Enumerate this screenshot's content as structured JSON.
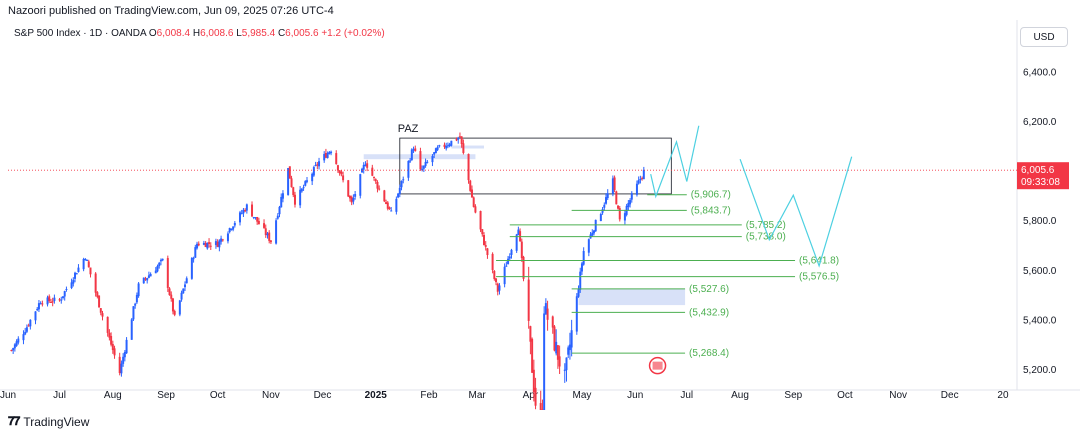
{
  "header": {
    "publisher_line": "Nazoori published on TradingView.com, Jun 09, 2025 07:26 UTC-4",
    "symbol": "S&P 500 Index · 1D · OANDA",
    "ohlc": [
      {
        "label": "O",
        "value": "6,008.4"
      },
      {
        "label": "H",
        "value": "6,008.6"
      },
      {
        "label": "L",
        "value": "5,985.4"
      },
      {
        "label": "C",
        "value": "6,005.6"
      }
    ],
    "change": "+1.2 (+0.02%)"
  },
  "currency_label": "USD",
  "footer": {
    "brand": "TradingView",
    "logo_icon": "tradingview-logo-icon"
  },
  "colors": {
    "up": "#2962ff",
    "down": "#f23645",
    "level": "#4caf50",
    "projection": "#4dd0e1",
    "last_price": "#f23645",
    "zone": "#c8d4f5"
  },
  "chart_data": {
    "type": "candlestick",
    "ylim": [
      5140,
      6490
    ],
    "yticks": [
      5200,
      5400,
      5600,
      5800,
      6000,
      6200,
      6400
    ],
    "ytick_labels": [
      "5,200.0",
      "5,400.0",
      "5,600.0",
      "5,800.0",
      "6,000.0",
      "6,200.0",
      "6,400.0"
    ],
    "time_range": [
      "2024-06-01",
      "2026-01-08"
    ],
    "xticks": [
      {
        "date": "2024-06-01",
        "label": "Jun"
      },
      {
        "date": "2024-07-01",
        "label": "Jul"
      },
      {
        "date": "2024-08-01",
        "label": "Aug"
      },
      {
        "date": "2024-09-01",
        "label": "Sep"
      },
      {
        "date": "2024-10-01",
        "label": "Oct"
      },
      {
        "date": "2024-11-01",
        "label": "Nov"
      },
      {
        "date": "2024-12-01",
        "label": "Dec"
      },
      {
        "date": "2025-01-01",
        "label": "2025"
      },
      {
        "date": "2025-02-01",
        "label": "Feb"
      },
      {
        "date": "2025-03-01",
        "label": "Mar"
      },
      {
        "date": "2025-04-01",
        "label": "Apr"
      },
      {
        "date": "2025-05-01",
        "label": "May"
      },
      {
        "date": "2025-06-01",
        "label": "Jun"
      },
      {
        "date": "2025-07-01",
        "label": "Jul"
      },
      {
        "date": "2025-08-01",
        "label": "Aug"
      },
      {
        "date": "2025-09-01",
        "label": "Sep"
      },
      {
        "date": "2025-10-01",
        "label": "Oct"
      },
      {
        "date": "2025-11-01",
        "label": "Nov"
      },
      {
        "date": "2025-12-01",
        "label": "Dec"
      },
      {
        "date": "2026-01-01",
        "label": "20"
      }
    ],
    "close_path": [
      {
        "date": "2024-06-03",
        "close": 5280
      },
      {
        "date": "2024-06-12",
        "close": 5375
      },
      {
        "date": "2024-06-20",
        "close": 5480
      },
      {
        "date": "2024-07-01",
        "close": 5480
      },
      {
        "date": "2024-07-16",
        "close": 5660
      },
      {
        "date": "2024-07-25",
        "close": 5440
      },
      {
        "date": "2024-08-05",
        "close": 5190
      },
      {
        "date": "2024-08-16",
        "close": 5540
      },
      {
        "date": "2024-08-30",
        "close": 5640
      },
      {
        "date": "2024-09-06",
        "close": 5410
      },
      {
        "date": "2024-09-19",
        "close": 5710
      },
      {
        "date": "2024-10-01",
        "close": 5710
      },
      {
        "date": "2024-10-18",
        "close": 5860
      },
      {
        "date": "2024-11-01",
        "close": 5720
      },
      {
        "date": "2024-11-11",
        "close": 6010
      },
      {
        "date": "2024-11-15",
        "close": 5880
      },
      {
        "date": "2024-11-29",
        "close": 6040
      },
      {
        "date": "2024-12-06",
        "close": 6090
      },
      {
        "date": "2024-12-18",
        "close": 5870
      },
      {
        "date": "2024-12-26",
        "close": 6040
      },
      {
        "date": "2025-01-10",
        "close": 5830
      },
      {
        "date": "2025-01-23",
        "close": 6100
      },
      {
        "date": "2025-01-27",
        "close": 6000
      },
      {
        "date": "2025-02-06",
        "close": 6090
      },
      {
        "date": "2025-02-19",
        "close": 6140
      },
      {
        "date": "2025-02-27",
        "close": 5860
      },
      {
        "date": "2025-03-13",
        "close": 5520
      },
      {
        "date": "2025-03-25",
        "close": 5780
      },
      {
        "date": "2025-04-04",
        "close": 5070
      },
      {
        "date": "2025-04-08",
        "close": 4980
      },
      {
        "date": "2025-04-09",
        "close": 5460
      },
      {
        "date": "2025-04-21",
        "close": 5160
      },
      {
        "date": "2025-05-02",
        "close": 5680
      },
      {
        "date": "2025-05-12",
        "close": 5840
      },
      {
        "date": "2025-05-19",
        "close": 5960
      },
      {
        "date": "2025-05-23",
        "close": 5800
      },
      {
        "date": "2025-06-06",
        "close": 6000
      }
    ],
    "last_price": {
      "value": "6,005.6",
      "countdown": "09:33:08"
    },
    "annotations": {
      "paz": {
        "label": "PAZ",
        "date_start": "2025-01-15",
        "date_end": "2025-06-22",
        "high": 6135,
        "low": 5910
      },
      "levels": [
        {
          "label": "(5,906.7)",
          "value": 5906.7,
          "date_start": "2025-06-08",
          "date_end": "2025-07-01"
        },
        {
          "label": "(5,843.7)",
          "value": 5843.7,
          "date_start": "2025-04-25",
          "date_end": "2025-07-01"
        },
        {
          "label": "(5,785.2)",
          "value": 5785.2,
          "date_start": "2025-03-20",
          "date_end": "2025-08-02"
        },
        {
          "label": "(5,738.0)",
          "value": 5738.0,
          "date_start": "2025-03-20",
          "date_end": "2025-08-02"
        },
        {
          "label": "(5,641.8)",
          "value": 5641.8,
          "date_start": "2025-03-12",
          "date_end": "2025-09-02"
        },
        {
          "label": "(5,576.5)",
          "value": 5576.5,
          "date_start": "2025-03-12",
          "date_end": "2025-09-02"
        },
        {
          "label": "(5,527.6)",
          "value": 5527.6,
          "date_start": "2025-04-25",
          "date_end": "2025-06-30"
        },
        {
          "label": "(5,432.9)",
          "value": 5432.9,
          "date_start": "2025-04-25",
          "date_end": "2025-06-30"
        },
        {
          "label": "(5,268.4)",
          "value": 5268.4,
          "date_start": "2025-04-25",
          "date_end": "2025-06-30"
        }
      ],
      "zones": [
        {
          "date_start": "2025-04-29",
          "date_end": "2025-06-30",
          "high": 5527.6,
          "low": 5462
        },
        {
          "date_start": "2024-12-25",
          "date_end": "2025-02-28",
          "high": 6070,
          "low": 6050
        },
        {
          "date_start": "2025-02-14",
          "date_end": "2025-03-05",
          "high": 6105,
          "low": 6093
        }
      ],
      "projection_1": [
        {
          "date": "2025-06-10",
          "value": 5990
        },
        {
          "date": "2025-06-13",
          "value": 5900
        },
        {
          "date": "2025-06-25",
          "value": 6120
        },
        {
          "date": "2025-07-01",
          "value": 5960
        },
        {
          "date": "2025-07-08",
          "value": 6185
        }
      ],
      "projection_2": [
        {
          "date": "2025-08-01",
          "value": 6050
        },
        {
          "date": "2025-08-18",
          "value": 5725
        },
        {
          "date": "2025-09-01",
          "value": 5905
        },
        {
          "date": "2025-09-16",
          "value": 5620
        },
        {
          "date": "2025-10-05",
          "value": 6060
        }
      ],
      "event_icon": {
        "date": "2025-06-14",
        "value": 5218,
        "name": "us-flag-icon"
      }
    }
  }
}
